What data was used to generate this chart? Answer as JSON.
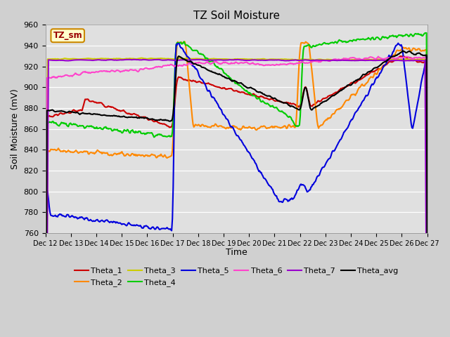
{
  "title": "TZ Soil Moisture",
  "xlabel": "Time",
  "ylabel": "Soil Moisture (mV)",
  "ylim": [
    760,
    960
  ],
  "yticks": [
    760,
    780,
    800,
    820,
    840,
    860,
    880,
    900,
    920,
    940,
    960
  ],
  "fig_bg_color": "#d0d0d0",
  "plot_bg_color": "#e0e0e0",
  "grid_color": "#ffffff",
  "series_colors": {
    "Theta_1": "#cc0000",
    "Theta_2": "#ff8800",
    "Theta_3": "#cccc00",
    "Theta_4": "#00cc00",
    "Theta_5": "#0000dd",
    "Theta_6": "#ff44cc",
    "Theta_7": "#9900cc",
    "Theta_avg": "#000000"
  },
  "legend_box_facecolor": "#ffffcc",
  "legend_box_edgecolor": "#cc8800",
  "watermark_text": "TZ_sm",
  "x_tick_labels": [
    "Dec 12",
    "Dec 13",
    "Dec 14",
    "Dec 15",
    "Dec 16",
    "Dec 17",
    "Dec 18",
    "Dec 19",
    "Dec 20",
    "Dec 21",
    "Dec 22",
    "Dec 23",
    "Dec 24",
    "Dec 25",
    "Dec 26",
    "Dec 27"
  ],
  "linewidth": 1.5
}
